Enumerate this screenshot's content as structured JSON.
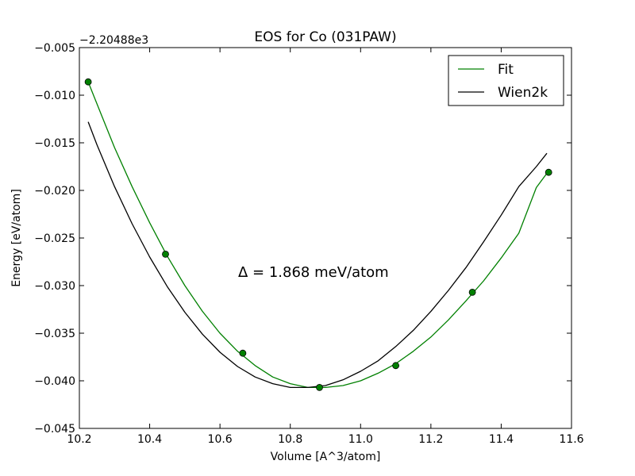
{
  "chart_data": {
    "type": "line",
    "title": "EOS for Co (031PAW)",
    "xlabel": "Volume [A^3/atom]",
    "ylabel": "Energy [eV/atom]",
    "offset_label": "−2.20488e3",
    "annotation": "Δ = 1.868 meV/atom",
    "xlim": [
      10.2,
      11.6
    ],
    "ylim": [
      -0.045,
      -0.005
    ],
    "x_ticks": [
      10.2,
      10.4,
      10.6,
      10.8,
      11.0,
      11.2,
      11.4,
      11.6
    ],
    "x_tick_labels": [
      "10.2",
      "10.4",
      "10.6",
      "10.8",
      "11.0",
      "11.2",
      "11.4",
      "11.6"
    ],
    "y_ticks": [
      -0.045,
      -0.04,
      -0.035,
      -0.03,
      -0.025,
      -0.02,
      -0.015,
      -0.01,
      -0.005
    ],
    "y_tick_labels": [
      "−0.045",
      "−0.040",
      "−0.035",
      "−0.030",
      "−0.025",
      "−0.020",
      "−0.015",
      "−0.010",
      "−0.005"
    ],
    "grid": false,
    "legend_position": "top-right",
    "series": [
      {
        "name": "Fit",
        "color": "#008000",
        "x": [
          10.225,
          10.25,
          10.3,
          10.35,
          10.4,
          10.45,
          10.5,
          10.55,
          10.6,
          10.65,
          10.7,
          10.75,
          10.8,
          10.85,
          10.9,
          10.95,
          11.0,
          11.05,
          11.1,
          11.15,
          11.2,
          11.25,
          11.3,
          11.35,
          11.4,
          11.45,
          11.5,
          11.532
        ],
        "y": [
          -0.0086,
          -0.0109,
          -0.0155,
          -0.0196,
          -0.0234,
          -0.0269,
          -0.03,
          -0.0327,
          -0.035,
          -0.0369,
          -0.0384,
          -0.0396,
          -0.0403,
          -0.0407,
          -0.0407,
          -0.0405,
          -0.04,
          -0.0392,
          -0.0382,
          -0.0369,
          -0.0354,
          -0.0336,
          -0.0316,
          -0.0295,
          -0.0271,
          -0.0245,
          -0.0197,
          -0.0181
        ]
      },
      {
        "name": "Wien2k",
        "color": "#000000",
        "x": [
          10.225,
          10.25,
          10.3,
          10.35,
          10.4,
          10.45,
          10.5,
          10.55,
          10.6,
          10.65,
          10.7,
          10.75,
          10.8,
          10.85,
          10.9,
          10.95,
          11.0,
          11.05,
          11.1,
          11.15,
          11.2,
          11.25,
          11.3,
          11.35,
          11.4,
          11.45,
          11.5,
          11.53
        ],
        "y": [
          -0.0128,
          -0.0152,
          -0.0196,
          -0.0235,
          -0.027,
          -0.0301,
          -0.0328,
          -0.0351,
          -0.037,
          -0.0385,
          -0.0396,
          -0.0403,
          -0.0407,
          -0.0407,
          -0.0405,
          -0.0399,
          -0.039,
          -0.0379,
          -0.0364,
          -0.0347,
          -0.0327,
          -0.0305,
          -0.0281,
          -0.0254,
          -0.0226,
          -0.0196,
          -0.0175,
          -0.0161
        ]
      }
    ],
    "points": {
      "color": "#008000",
      "x": [
        10.225,
        10.445,
        10.665,
        10.883,
        11.1,
        11.318,
        11.535
      ],
      "y": [
        -0.0086,
        -0.0267,
        -0.0371,
        -0.0407,
        -0.0384,
        -0.0307,
        -0.0181
      ]
    }
  }
}
